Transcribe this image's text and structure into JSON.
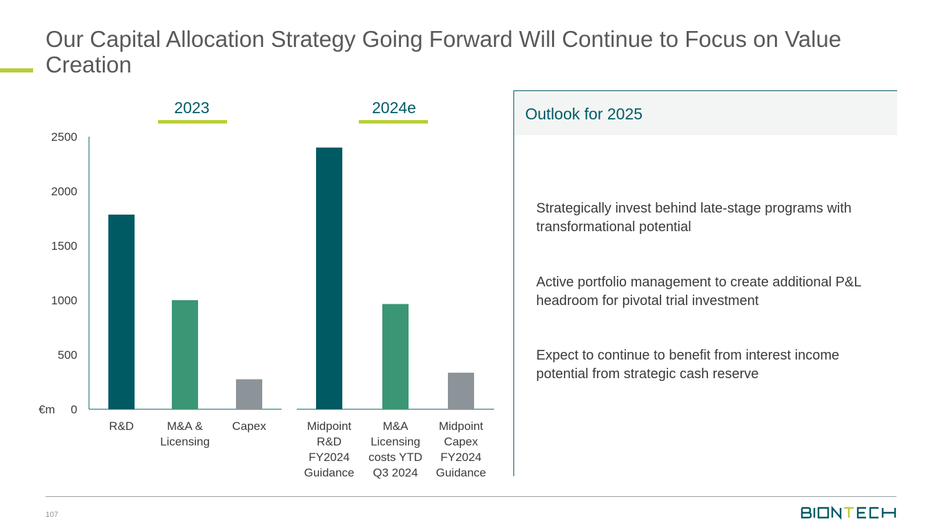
{
  "slide": {
    "title": "Our Capital Allocation Strategy Going Forward Will Continue to Focus on Value Creation",
    "page_number": "107",
    "logo_text": "BIONTECH"
  },
  "groups": [
    {
      "label": "2023"
    },
    {
      "label": "2024e"
    }
  ],
  "outlook": {
    "title": "Outlook for 2025",
    "bullets": [
      "Strategically invest behind late-stage programs with transformational potential",
      "Active portfolio management to create additional P&L headroom for pivotal trial investment",
      "Expect to continue to benefit from interest income potential from strategic cash reserve"
    ]
  },
  "colors": {
    "accent": "#b9cd37",
    "dark_teal": "#005a64",
    "green": "#3a9674",
    "grey": "#8c9499"
  },
  "chart_data": {
    "type": "bar",
    "unit_label": "€m",
    "ylim": [
      0,
      2500
    ],
    "yticks": [
      0,
      500,
      1000,
      1500,
      2000,
      2500
    ],
    "grid": false,
    "groups": [
      {
        "label": "2023",
        "bars": [
          {
            "category": [
              "R&D"
            ],
            "value": 1785,
            "color": "dark_teal"
          },
          {
            "category": [
              "M&A &",
              "Licensing"
            ],
            "value": 1000,
            "color": "green"
          },
          {
            "category": [
              "Capex"
            ],
            "value": 275,
            "color": "grey"
          }
        ]
      },
      {
        "label": "2024e",
        "bars": [
          {
            "category": [
              "Midpoint",
              "R&D",
              "FY2024",
              "Guidance"
            ],
            "value": 2400,
            "color": "dark_teal"
          },
          {
            "category": [
              "M&A",
              "Licensing",
              "costs YTD",
              "Q3 2024"
            ],
            "value": 965,
            "color": "green"
          },
          {
            "category": [
              "Midpoint",
              "Capex",
              "FY2024",
              "Guidance"
            ],
            "value": 335,
            "color": "grey"
          }
        ]
      }
    ]
  }
}
